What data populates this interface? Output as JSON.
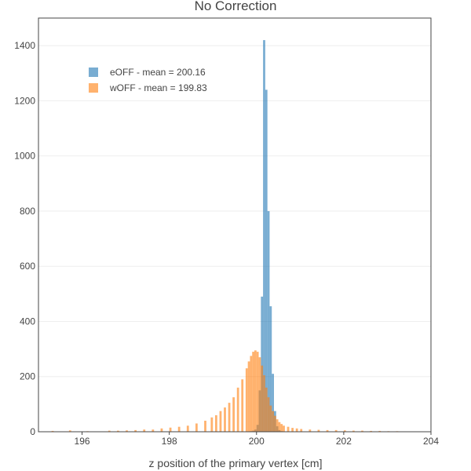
{
  "chart_data": {
    "type": "bar",
    "title": "No Correction",
    "xlabel": "z position of the primary vertex [cm]",
    "ylabel": "",
    "xlim": [
      195,
      204
    ],
    "ylim": [
      0,
      1500
    ],
    "xticks": [
      196,
      198,
      200,
      202,
      204
    ],
    "yticks": [
      0,
      200,
      400,
      600,
      800,
      1000,
      1200,
      1400
    ],
    "grid": true,
    "legend_position": "top-left",
    "bin_width": 0.05,
    "overlay": true,
    "series": [
      {
        "name": "eOFF - mean = 200.16",
        "color": "#1f77b4",
        "bins": [
          [
            199.85,
            2
          ],
          [
            199.9,
            4
          ],
          [
            199.95,
            8
          ],
          [
            200.0,
            25
          ],
          [
            200.05,
            150
          ],
          [
            200.1,
            490
          ],
          [
            200.15,
            1420
          ],
          [
            200.2,
            1240
          ],
          [
            200.25,
            800
          ],
          [
            200.3,
            455
          ],
          [
            200.35,
            210
          ],
          [
            200.4,
            75
          ],
          [
            200.45,
            20
          ],
          [
            200.5,
            6
          ],
          [
            200.55,
            2
          ]
        ]
      },
      {
        "name": "wOFF - mean = 199.83",
        "color": "#ff7f0e",
        "bins": [
          [
            195.3,
            3
          ],
          [
            195.7,
            5
          ],
          [
            196.1,
            2
          ],
          [
            196.6,
            4
          ],
          [
            196.8,
            4
          ],
          [
            197.0,
            5
          ],
          [
            197.2,
            6
          ],
          [
            197.4,
            8
          ],
          [
            197.6,
            8
          ],
          [
            197.8,
            12
          ],
          [
            198.0,
            15
          ],
          [
            198.2,
            18
          ],
          [
            198.4,
            22
          ],
          [
            198.6,
            30
          ],
          [
            198.8,
            40
          ],
          [
            198.95,
            52
          ],
          [
            199.05,
            60
          ],
          [
            199.15,
            75
          ],
          [
            199.25,
            88
          ],
          [
            199.35,
            105
          ],
          [
            199.45,
            125
          ],
          [
            199.55,
            160
          ],
          [
            199.65,
            190
          ],
          [
            199.75,
            230
          ],
          [
            199.8,
            255
          ],
          [
            199.85,
            275
          ],
          [
            199.9,
            290
          ],
          [
            199.95,
            295
          ],
          [
            200.0,
            290
          ],
          [
            200.05,
            270
          ],
          [
            200.1,
            240
          ],
          [
            200.15,
            205
          ],
          [
            200.2,
            160
          ],
          [
            200.25,
            125
          ],
          [
            200.3,
            95
          ],
          [
            200.35,
            75
          ],
          [
            200.4,
            58
          ],
          [
            200.45,
            45
          ],
          [
            200.5,
            35
          ],
          [
            200.55,
            28
          ],
          [
            200.6,
            22
          ],
          [
            200.7,
            18
          ],
          [
            200.8,
            14
          ],
          [
            200.9,
            12
          ],
          [
            201.0,
            10
          ],
          [
            201.2,
            8
          ],
          [
            201.4,
            7
          ],
          [
            201.6,
            6
          ],
          [
            201.8,
            6
          ],
          [
            202.0,
            5
          ],
          [
            202.2,
            4
          ],
          [
            202.4,
            4
          ],
          [
            202.6,
            3
          ],
          [
            202.8,
            3
          ],
          [
            203.0,
            2
          ],
          [
            203.2,
            2
          ],
          [
            203.5,
            1
          ]
        ]
      }
    ]
  }
}
